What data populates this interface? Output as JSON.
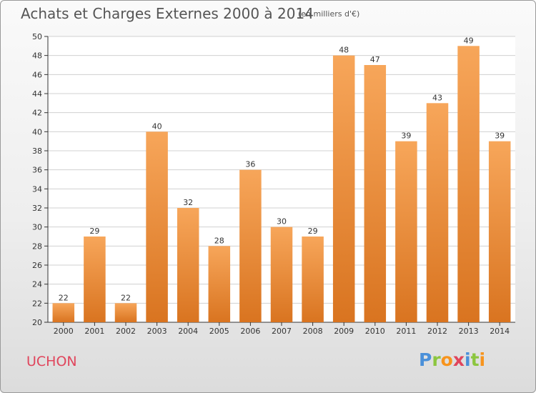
{
  "title": "Achats et Charges Externes 2000 à 2014",
  "unit": "(en milliers d'€)",
  "commune": "UCHON",
  "logo": {
    "letters": [
      "P",
      "r",
      "o",
      "x",
      "i",
      "t",
      "i"
    ],
    "colors": [
      "#4a90d9",
      "#8cc63f",
      "#f7941d",
      "#e0455c",
      "#4a90d9",
      "#8cc63f",
      "#f7941d"
    ]
  },
  "colors": {
    "bar_top": "#f7a65a",
    "bar_bottom": "#d97420",
    "grid": "#d0d0d0",
    "axis": "#333333"
  },
  "chart_data": {
    "type": "bar",
    "title": "Achats et Charges Externes 2000 à 2014",
    "xlabel": "",
    "ylabel": "",
    "categories": [
      "2000",
      "2001",
      "2002",
      "2003",
      "2004",
      "2005",
      "2006",
      "2007",
      "2008",
      "2009",
      "2010",
      "2011",
      "2012",
      "2013",
      "2014"
    ],
    "values": [
      22,
      29,
      22,
      40,
      32,
      28,
      36,
      30,
      29,
      48,
      47,
      39,
      43,
      49,
      39
    ],
    "ylim": [
      20,
      50
    ],
    "yticks": [
      20,
      22,
      24,
      26,
      28,
      30,
      32,
      34,
      36,
      38,
      40,
      42,
      44,
      46,
      48,
      50
    ],
    "grid": true,
    "legend": "none"
  }
}
